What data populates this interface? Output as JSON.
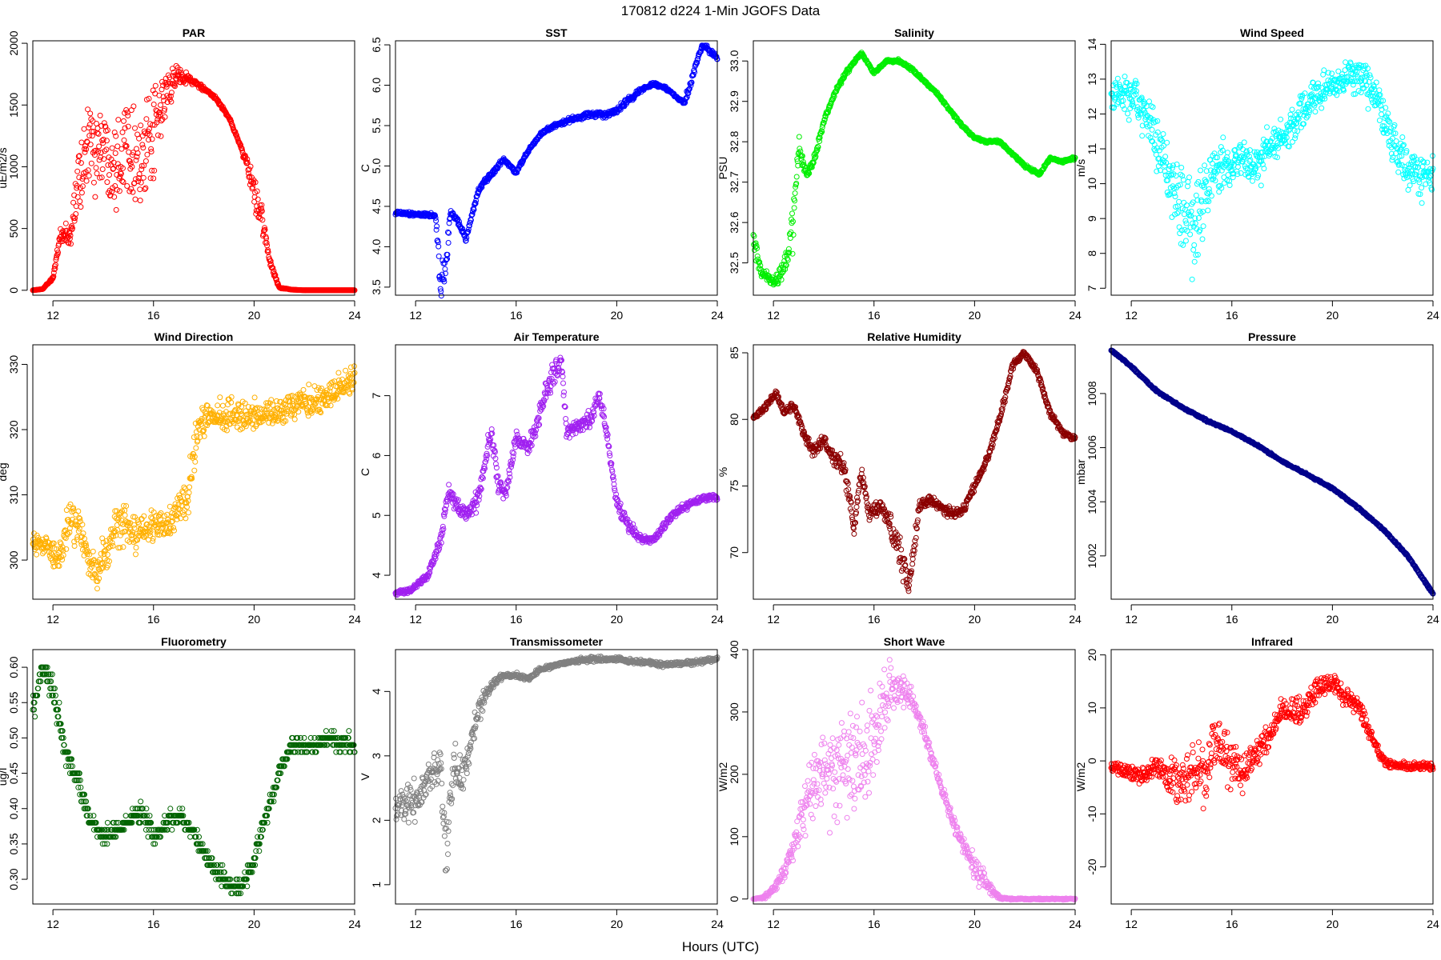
{
  "figure": {
    "title": "170812   d224   1-Min  JGOFS Data",
    "xlabel": "Hours (UTC)"
  },
  "chart_data": [
    {
      "type": "scatter",
      "title": "PAR",
      "xlabel": "",
      "ylabel": "uE/m2/s",
      "color": "#ff0000",
      "xlim": [
        11.2,
        24
      ],
      "xticks": [
        12,
        16,
        20,
        24
      ],
      "ylim": [
        -40,
        2020
      ],
      "yticks": [
        0,
        500,
        1000,
        1500,
        2000
      ],
      "key_x": [
        11.2,
        11.6,
        12,
        12.3,
        12.7,
        13,
        13.5,
        14,
        14.5,
        15,
        15.5,
        16,
        16.5,
        17,
        17.5,
        18,
        18.5,
        19,
        19.5,
        20,
        20.3,
        20.6,
        21,
        21.5,
        22,
        23,
        24
      ],
      "key_y": [
        0,
        10,
        100,
        450,
        420,
        900,
        1200,
        1150,
        1050,
        1250,
        1000,
        1250,
        1600,
        1750,
        1700,
        1630,
        1550,
        1400,
        1150,
        800,
        600,
        250,
        20,
        5,
        0,
        0,
        0
      ],
      "noise": [
        0,
        0,
        20,
        40,
        100,
        250,
        300,
        300,
        320,
        320,
        320,
        300,
        150,
        60,
        30,
        15,
        10,
        10,
        10,
        120,
        100,
        30,
        5,
        0,
        0,
        0,
        0
      ],
      "n": 780
    },
    {
      "type": "scatter",
      "title": "SST",
      "xlabel": "",
      "ylabel": "C",
      "color": "#0000ff",
      "xlim": [
        11.2,
        24
      ],
      "xticks": [
        12,
        16,
        20,
        24
      ],
      "ylim": [
        3.4,
        6.55
      ],
      "yticks": [
        3.5,
        4.0,
        4.5,
        5.0,
        5.5,
        6.0,
        6.5
      ],
      "key_x": [
        11.2,
        12,
        12.8,
        13.0,
        13.2,
        13.4,
        13.8,
        14.0,
        14.5,
        15,
        15.5,
        16,
        16.5,
        17,
        17.5,
        18,
        18.5,
        19,
        19.5,
        20,
        20.5,
        21,
        21.5,
        22,
        22.4,
        22.7,
        23,
        23.4,
        24
      ],
      "key_y": [
        4.42,
        4.4,
        4.38,
        3.5,
        3.8,
        4.45,
        4.25,
        4.1,
        4.7,
        4.9,
        5.08,
        4.92,
        5.2,
        5.4,
        5.5,
        5.55,
        5.6,
        5.64,
        5.63,
        5.68,
        5.82,
        5.95,
        6.02,
        5.95,
        5.85,
        5.78,
        6.1,
        6.5,
        6.35
      ],
      "noise": [
        0.02,
        0.02,
        0.03,
        0.2,
        0.2,
        0.03,
        0.05,
        0.03,
        0.03,
        0.03,
        0.02,
        0.02,
        0.02,
        0.02,
        0.02,
        0.03,
        0.03,
        0.03,
        0.03,
        0.03,
        0.03,
        0.03,
        0.02,
        0.02,
        0.02,
        0.03,
        0.05,
        0.03,
        0.03
      ],
      "n": 780
    },
    {
      "type": "scatter",
      "title": "Salinity",
      "xlabel": "",
      "ylabel": "PSU",
      "color": "#00ee00",
      "xlim": [
        11.2,
        24
      ],
      "xticks": [
        12,
        16,
        20,
        24
      ],
      "ylim": [
        32.42,
        33.05
      ],
      "yticks": [
        32.5,
        32.6,
        32.7,
        32.8,
        32.9,
        33.0
      ],
      "key_x": [
        11.2,
        11.5,
        12.0,
        12.5,
        12.8,
        13.0,
        13.3,
        13.6,
        14,
        14.5,
        15,
        15.5,
        16,
        16.5,
        17,
        17.5,
        18,
        18.5,
        19,
        19.5,
        20,
        20.5,
        21,
        21.5,
        22,
        22.6,
        23,
        23.5,
        24
      ],
      "key_y": [
        32.56,
        32.48,
        32.45,
        32.5,
        32.6,
        32.79,
        32.72,
        32.75,
        32.85,
        32.93,
        32.98,
        33.02,
        32.97,
        33.0,
        33.0,
        32.98,
        32.95,
        32.92,
        32.88,
        32.84,
        32.81,
        32.8,
        32.8,
        32.77,
        32.74,
        32.72,
        32.76,
        32.75,
        32.76
      ],
      "noise": [
        0.03,
        0.01,
        0.01,
        0.02,
        0.05,
        0.02,
        0.01,
        0.01,
        0.005,
        0.005,
        0.005,
        0.003,
        0.003,
        0.003,
        0.003,
        0.003,
        0.003,
        0.003,
        0.003,
        0.003,
        0.003,
        0.003,
        0.003,
        0.003,
        0.003,
        0.003,
        0.003,
        0.003,
        0.003
      ],
      "n": 780
    },
    {
      "type": "scatter",
      "title": "Wind Speed",
      "xlabel": "",
      "ylabel": "m/s",
      "color": "#00ffff",
      "xlim": [
        11.2,
        24
      ],
      "xticks": [
        12,
        16,
        20,
        24
      ],
      "ylim": [
        6.8,
        14.1
      ],
      "yticks": [
        7,
        8,
        9,
        10,
        11,
        12,
        13,
        14
      ],
      "key_x": [
        11.2,
        11.5,
        12,
        12.5,
        13,
        13.5,
        14,
        14.5,
        15,
        15.5,
        16,
        16.5,
        17,
        17.5,
        18,
        18.5,
        19,
        19.5,
        20,
        20.5,
        21,
        21.5,
        22,
        22.5,
        23,
        23.5,
        24
      ],
      "key_y": [
        12.3,
        12.8,
        12.5,
        12.0,
        11.2,
        10.2,
        9.5,
        9.0,
        9.8,
        10.5,
        10.6,
        10.8,
        10.6,
        11.0,
        11.3,
        11.8,
        12.3,
        12.6,
        12.8,
        13.0,
        13.2,
        12.8,
        12.0,
        11.0,
        10.5,
        10.2,
        10.3
      ],
      "noise": [
        0.5,
        0.5,
        0.5,
        0.6,
        0.8,
        0.9,
        1.1,
        1.1,
        0.9,
        0.6,
        0.5,
        0.5,
        0.5,
        0.5,
        0.4,
        0.4,
        0.4,
        0.4,
        0.4,
        0.4,
        0.5,
        0.5,
        0.5,
        0.5,
        0.5,
        0.5,
        0.5
      ],
      "n": 780
    },
    {
      "type": "scatter",
      "title": "Wind Direction",
      "xlabel": "",
      "ylabel": "deg",
      "color": "#ffb000",
      "xlim": [
        11.2,
        24
      ],
      "xticks": [
        12,
        16,
        20,
        24
      ],
      "ylim": [
        294,
        333
      ],
      "yticks": [
        300,
        310,
        320,
        330
      ],
      "key_x": [
        11.2,
        11.8,
        12.2,
        12.6,
        13.0,
        13.4,
        13.8,
        14.2,
        14.6,
        15.0,
        15.5,
        16,
        16.5,
        17,
        17.4,
        17.6,
        17.8,
        18.2,
        19,
        20,
        21,
        22,
        23,
        24
      ],
      "key_y": [
        303,
        302,
        300,
        305,
        306,
        300,
        298,
        302,
        306,
        305,
        304,
        305,
        305,
        308,
        310,
        316,
        321,
        322,
        322,
        322,
        323,
        324,
        325,
        328
      ],
      "noise": [
        1.5,
        1.5,
        1.8,
        3,
        3,
        2,
        2,
        3,
        3,
        3,
        2,
        2,
        2,
        2,
        3,
        3,
        2,
        2,
        2,
        2,
        1.8,
        1.8,
        1.8,
        2
      ],
      "n": 780
    },
    {
      "type": "scatter",
      "title": "Air Temperature",
      "xlabel": "",
      "ylabel": "C",
      "color": "#a020f0",
      "xlim": [
        11.2,
        24
      ],
      "xticks": [
        12,
        16,
        20,
        24
      ],
      "ylim": [
        3.6,
        7.85
      ],
      "yticks": [
        4,
        5,
        6,
        7
      ],
      "key_x": [
        11.2,
        11.8,
        12.5,
        13,
        13.3,
        13.6,
        14,
        14.5,
        15,
        15.3,
        15.6,
        16,
        16.5,
        17,
        17.5,
        17.8,
        18,
        18.5,
        19,
        19.3,
        19.6,
        20,
        20.5,
        21,
        21.5,
        22,
        22.5,
        23,
        23.5,
        24
      ],
      "key_y": [
        3.7,
        3.75,
        4.0,
        4.6,
        5.4,
        5.2,
        5.0,
        5.3,
        6.4,
        5.5,
        5.4,
        6.3,
        6.1,
        6.8,
        7.4,
        7.6,
        6.4,
        6.5,
        6.6,
        7.0,
        6.4,
        5.2,
        4.8,
        4.6,
        4.6,
        4.9,
        5.1,
        5.2,
        5.3,
        5.3
      ],
      "noise": [
        0.04,
        0.04,
        0.05,
        0.1,
        0.1,
        0.1,
        0.1,
        0.15,
        0.15,
        0.15,
        0.1,
        0.1,
        0.1,
        0.15,
        0.2,
        0.1,
        0.1,
        0.1,
        0.15,
        0.1,
        0.1,
        0.1,
        0.08,
        0.05,
        0.05,
        0.05,
        0.05,
        0.05,
        0.05,
        0.05
      ],
      "n": 780
    },
    {
      "type": "scatter",
      "title": "Relative Humidity",
      "xlabel": "",
      "ylabel": "%",
      "color": "#8b0000",
      "xlim": [
        11.2,
        24
      ],
      "xticks": [
        12,
        16,
        20,
        24
      ],
      "ylim": [
        66.5,
        85.6
      ],
      "yticks": [
        70,
        75,
        80,
        85
      ],
      "key_x": [
        11.2,
        11.7,
        12.1,
        12.4,
        12.8,
        13.2,
        13.6,
        14,
        14.4,
        14.8,
        15.2,
        15.5,
        15.8,
        16.2,
        16.6,
        17.0,
        17.4,
        17.8,
        18.2,
        18.6,
        19.0,
        19.5,
        20,
        20.5,
        21,
        21.5,
        22,
        22.5,
        23,
        23.5,
        24
      ],
      "key_y": [
        80,
        81,
        82,
        80.5,
        81,
        79,
        77.5,
        78.5,
        77,
        76.5,
        72,
        76,
        73,
        73.5,
        72.5,
        70,
        67.5,
        73.5,
        74,
        73.5,
        73,
        73,
        75,
        77,
        80,
        84,
        85,
        83.5,
        80.5,
        79,
        78.5
      ],
      "noise": [
        0.2,
        0.2,
        0.2,
        0.3,
        0.3,
        0.4,
        0.4,
        0.4,
        0.5,
        0.6,
        0.8,
        0.6,
        0.5,
        0.5,
        0.8,
        1.0,
        0.8,
        0.4,
        0.3,
        0.3,
        0.4,
        0.3,
        0.3,
        0.3,
        0.3,
        0.2,
        0.2,
        0.2,
        0.2,
        0.2,
        0.2
      ],
      "n": 780
    },
    {
      "type": "scatter",
      "title": "Pressure",
      "xlabel": "",
      "ylabel": "mbar",
      "color": "#00008b",
      "xlim": [
        11.2,
        24
      ],
      "xticks": [
        12,
        16,
        20,
        24
      ],
      "ylim": [
        1000.4,
        1009.8
      ],
      "yticks": [
        1002,
        1004,
        1006,
        1008
      ],
      "key_x": [
        11.2,
        12,
        13,
        14,
        15,
        16,
        17,
        18,
        19,
        20,
        21,
        22,
        23,
        23.5,
        24
      ],
      "key_y": [
        1009.6,
        1009.0,
        1008.1,
        1007.5,
        1007.0,
        1006.6,
        1006.1,
        1005.5,
        1005.0,
        1004.5,
        1003.8,
        1003.0,
        1002.0,
        1001.3,
        1000.6
      ],
      "noise": [
        0.03,
        0.03,
        0.03,
        0.03,
        0.03,
        0.03,
        0.03,
        0.03,
        0.03,
        0.03,
        0.03,
        0.03,
        0.03,
        0.03,
        0.03
      ],
      "n": 780
    },
    {
      "type": "scatter",
      "title": "Fluorometry",
      "xlabel": "",
      "ylabel": "ug/l",
      "color": "#006400",
      "xlim": [
        11.2,
        24
      ],
      "xticks": [
        12,
        16,
        20,
        24
      ],
      "ylim": [
        0.265,
        0.625
      ],
      "yticks": [
        0.3,
        0.35,
        0.4,
        0.45,
        0.5,
        0.55,
        0.6
      ],
      "key_x": [
        11.2,
        11.6,
        12,
        12.5,
        13,
        13.5,
        14,
        14.5,
        15,
        15.5,
        16,
        16.5,
        17,
        17.5,
        18,
        18.5,
        19,
        19.5,
        20,
        20.5,
        21,
        21.5,
        22,
        22.5,
        23,
        23.5,
        24
      ],
      "key_y": [
        0.54,
        0.6,
        0.57,
        0.48,
        0.44,
        0.38,
        0.36,
        0.37,
        0.38,
        0.4,
        0.36,
        0.38,
        0.39,
        0.37,
        0.34,
        0.31,
        0.29,
        0.29,
        0.33,
        0.39,
        0.45,
        0.49,
        0.49,
        0.49,
        0.5,
        0.49,
        0.49
      ],
      "noise": [
        0.02,
        0.01,
        0.015,
        0.015,
        0.015,
        0.01,
        0.01,
        0.01,
        0.01,
        0.015,
        0.01,
        0.01,
        0.01,
        0.01,
        0.01,
        0.01,
        0.01,
        0.01,
        0.01,
        0.01,
        0.01,
        0.01,
        0.01,
        0.01,
        0.01,
        0.01,
        0.01
      ],
      "quantize": 0.01,
      "n": 780
    },
    {
      "type": "scatter",
      "title": "Transmissometer",
      "xlabel": "",
      "ylabel": "V",
      "color": "#808080",
      "xlim": [
        11.2,
        24
      ],
      "xticks": [
        12,
        16,
        20,
        24
      ],
      "ylim": [
        0.7,
        4.65
      ],
      "yticks": [
        1,
        2,
        3,
        4
      ],
      "key_x": [
        11.2,
        11.6,
        12,
        12.5,
        13,
        13.2,
        13.5,
        14,
        14.5,
        15,
        15.5,
        16,
        16.5,
        17,
        18,
        19,
        20,
        21,
        22,
        23,
        24
      ],
      "key_y": [
        2.2,
        2.3,
        2.2,
        2.7,
        2.9,
        1.4,
        2.8,
        2.8,
        3.7,
        4.1,
        4.25,
        4.25,
        4.2,
        4.35,
        4.45,
        4.5,
        4.5,
        4.45,
        4.42,
        4.45,
        4.5
      ],
      "noise": [
        0.25,
        0.25,
        0.3,
        0.2,
        0.2,
        0.5,
        0.3,
        0.3,
        0.15,
        0.05,
        0.03,
        0.03,
        0.03,
        0.03,
        0.03,
        0.03,
        0.03,
        0.03,
        0.03,
        0.03,
        0.03
      ],
      "n": 780
    },
    {
      "type": "scatter",
      "title": "Short Wave",
      "xlabel": "",
      "ylabel": "W/m2",
      "color": "#ee82ee",
      "xlim": [
        11.2,
        24
      ],
      "xticks": [
        12,
        16,
        20,
        24
      ],
      "ylim": [
        -8,
        400
      ],
      "yticks": [
        0,
        100,
        200,
        300,
        400
      ],
      "key_x": [
        11.2,
        11.6,
        12,
        12.4,
        12.8,
        13.2,
        13.6,
        14,
        14.5,
        15,
        15.5,
        16,
        16.5,
        17,
        17.5,
        18,
        18.5,
        19,
        19.5,
        20,
        20.5,
        21,
        21.5,
        22,
        24
      ],
      "key_y": [
        0,
        2,
        15,
        40,
        80,
        140,
        180,
        200,
        210,
        230,
        220,
        250,
        330,
        340,
        320,
        270,
        200,
        140,
        90,
        50,
        20,
        2,
        0,
        0,
        0
      ],
      "noise": [
        0,
        2,
        5,
        10,
        20,
        40,
        50,
        60,
        70,
        70,
        70,
        60,
        40,
        25,
        15,
        10,
        8,
        8,
        10,
        20,
        15,
        2,
        1,
        1,
        1
      ],
      "n": 780
    },
    {
      "type": "scatter",
      "title": "Infrared",
      "xlabel": "",
      "ylabel": "W/m2",
      "color": "#ff0000",
      "xlim": [
        11.2,
        24
      ],
      "xticks": [
        12,
        16,
        20,
        24
      ],
      "ylim": [
        -27,
        21
      ],
      "yticks": [
        -20,
        -10,
        0,
        10,
        20
      ],
      "key_x": [
        11.2,
        11.8,
        12.4,
        13,
        13.5,
        14,
        14.5,
        15,
        15.3,
        15.6,
        16,
        16.5,
        17,
        17.5,
        18,
        18.5,
        19,
        19.5,
        20,
        20.5,
        21,
        21.5,
        22,
        22.5,
        23,
        23.5,
        24
      ],
      "key_y": [
        -1,
        -2,
        -3,
        -1,
        -3,
        -4,
        -2,
        -3,
        5,
        2,
        0,
        -2,
        2,
        5,
        10,
        9,
        11,
        14,
        15,
        12,
        11,
        5,
        0,
        -1,
        -1,
        -1,
        -1
      ],
      "noise": [
        0.6,
        1,
        1.5,
        1.5,
        3,
        4,
        4,
        5,
        4,
        4,
        4,
        3,
        3,
        2,
        2,
        2,
        2,
        2,
        1.5,
        1.2,
        1.5,
        1.2,
        0.8,
        0.6,
        0.6,
        0.6,
        0.6
      ],
      "n": 780
    }
  ]
}
